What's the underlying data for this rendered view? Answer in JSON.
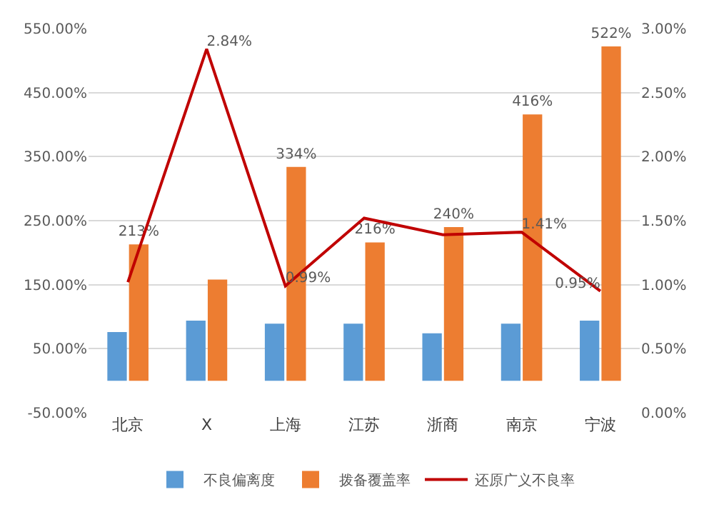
{
  "chart_data": {
    "type": "bar",
    "categories": [
      "北京",
      "X",
      "上海",
      "江苏",
      "浙商",
      "南京",
      "宁波"
    ],
    "series": [
      {
        "name": "不良偏离度",
        "color": "#5b9bd5",
        "values": [
          76,
          94,
          89,
          89,
          74,
          89,
          94
        ]
      },
      {
        "name": "拨备覆盖率",
        "color": "#ed7d31",
        "values": [
          213,
          158,
          334,
          216,
          240,
          416,
          522
        ],
        "value_labels": [
          "213%",
          null,
          "334%",
          "216%",
          "240%",
          "416%",
          "522%"
        ]
      },
      {
        "name": "还原广义不良率",
        "type": "line",
        "axis": "y2",
        "color": "#c00000",
        "values": [
          1.02,
          2.84,
          0.99,
          1.52,
          1.39,
          1.41,
          0.95
        ],
        "value_labels": [
          null,
          "2.84%",
          "0.99%",
          null,
          null,
          "1.41%",
          "0.95%"
        ]
      }
    ],
    "ylim": [
      -50,
      550
    ],
    "yticks": [
      {
        "value": -50,
        "label": "-50.00%"
      },
      {
        "value": 50,
        "label": "50.00%"
      },
      {
        "value": 150,
        "label": "150.00%"
      },
      {
        "value": 250,
        "label": "250.00%"
      },
      {
        "value": 350,
        "label": "350.00%"
      },
      {
        "value": 450,
        "label": "450.00%"
      },
      {
        "value": 550,
        "label": "550.00%"
      }
    ],
    "y2lim": [
      0,
      3
    ],
    "y2ticks": [
      {
        "value": 0,
        "label": "0.00%"
      },
      {
        "value": 0.5,
        "label": "0.50%"
      },
      {
        "value": 1,
        "label": "1.00%"
      },
      {
        "value": 1.5,
        "label": "1.50%"
      },
      {
        "value": 2,
        "label": "2.00%"
      },
      {
        "value": 2.5,
        "label": "2.50%"
      },
      {
        "value": 3,
        "label": "3.00%"
      }
    ],
    "grid": "y",
    "legend": "bottom",
    "marker": "none",
    "line_style": "solid"
  }
}
